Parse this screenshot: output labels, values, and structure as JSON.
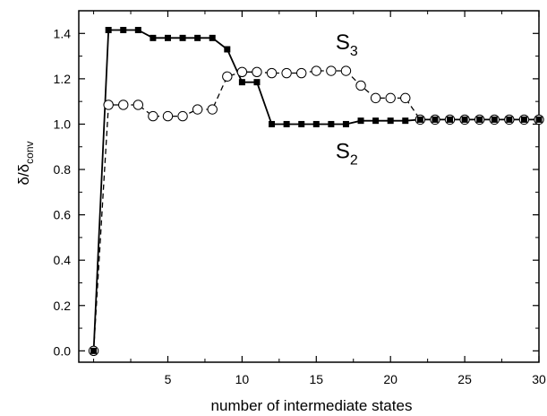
{
  "chart_data": {
    "type": "line",
    "title": "",
    "xlabel": "number of intermediate states",
    "ylabel": {
      "main": "δ/δ",
      "sub": "conv"
    },
    "xlim": [
      -1,
      30
    ],
    "ylim": [
      -0.05,
      1.5
    ],
    "xticks": [
      5,
      10,
      15,
      20,
      25,
      30
    ],
    "yticks": [
      0.0,
      0.2,
      0.4,
      0.6,
      0.8,
      1.0,
      1.2,
      1.4
    ],
    "ytick_labels": [
      "0.0",
      "0.2",
      "0.4",
      "0.6",
      "0.8",
      "1.0",
      "1.2",
      "1.4"
    ],
    "grid": false,
    "series": [
      {
        "name": "S2",
        "label_main": "S",
        "label_sub": "2",
        "line": "solid",
        "marker": "filled-square",
        "color": "#000000",
        "x": [
          0,
          1,
          2,
          3,
          4,
          5,
          6,
          7,
          8,
          9,
          10,
          11,
          12,
          13,
          14,
          15,
          16,
          17,
          18,
          19,
          20,
          21,
          22,
          23,
          24,
          25,
          26,
          27,
          28,
          29,
          30
        ],
        "y": [
          0.0,
          1.415,
          1.415,
          1.415,
          1.38,
          1.38,
          1.38,
          1.38,
          1.38,
          1.33,
          1.185,
          1.185,
          1.0,
          1.0,
          1.0,
          1.0,
          1.0,
          1.0,
          1.015,
          1.015,
          1.015,
          1.015,
          1.02,
          1.02,
          1.02,
          1.02,
          1.02,
          1.02,
          1.02,
          1.02,
          1.02
        ]
      },
      {
        "name": "S3",
        "label_main": "S",
        "label_sub": "3",
        "line": "dashed",
        "marker": "open-circle",
        "color": "#000000",
        "x": [
          0,
          1,
          2,
          3,
          4,
          5,
          6,
          7,
          8,
          9,
          10,
          11,
          12,
          13,
          14,
          15,
          16,
          17,
          18,
          19,
          20,
          21,
          22,
          23,
          24,
          25,
          26,
          27,
          28,
          29,
          30
        ],
        "y": [
          0.0,
          1.085,
          1.085,
          1.085,
          1.035,
          1.035,
          1.035,
          1.065,
          1.065,
          1.21,
          1.23,
          1.23,
          1.225,
          1.225,
          1.225,
          1.235,
          1.235,
          1.235,
          1.17,
          1.115,
          1.115,
          1.115,
          1.02,
          1.02,
          1.02,
          1.02,
          1.02,
          1.02,
          1.02,
          1.02,
          1.02
        ]
      }
    ],
    "annotations": [
      {
        "series": "S3",
        "x": 16.3,
        "y": 1.33
      },
      {
        "series": "S2",
        "x": 16.3,
        "y": 0.85
      }
    ]
  }
}
